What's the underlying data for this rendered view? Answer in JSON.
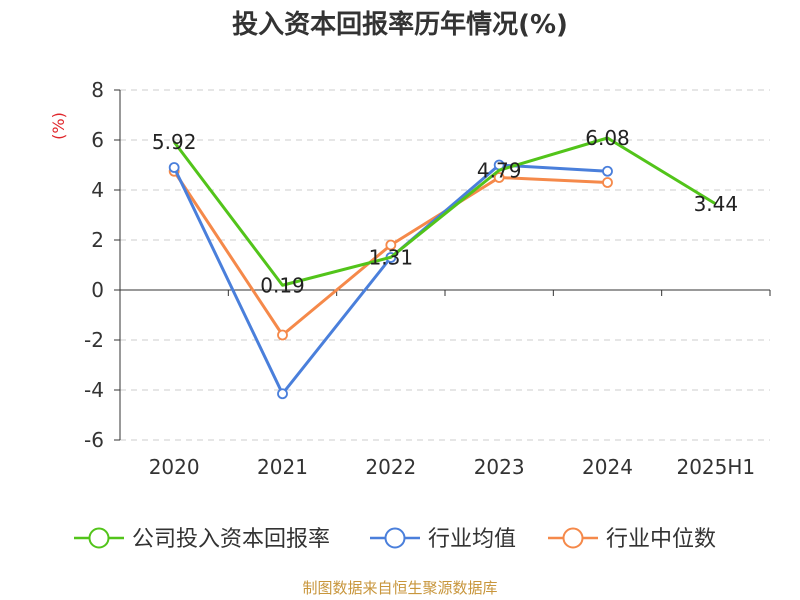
{
  "title": "投入资本回报率历年情况(%)",
  "source": "制图数据来自恒生聚源数据库",
  "colors": {
    "company": "#52c41a",
    "industry_avg": "#4a7fdb",
    "industry_median": "#f5894a",
    "ylabel": "#e0262b",
    "axis": "#333333",
    "grid": "#cccccc"
  },
  "chart_data": {
    "type": "line",
    "ylabel": "(%)",
    "ylim": [
      -6,
      8
    ],
    "yticks": [
      "8",
      "6",
      "4",
      "2",
      "0",
      "-2",
      "-4",
      "-6"
    ],
    "categories": [
      "2020",
      "2021",
      "2022",
      "2023",
      "2024",
      "2025H1"
    ],
    "grid": true,
    "legend_position": "bottom",
    "series": [
      {
        "name": "公司投入资本回报率",
        "values": [
          5.92,
          0.19,
          1.31,
          4.79,
          6.08,
          3.44
        ],
        "labels": [
          "5.92",
          "0.19",
          "1.31",
          "4.79",
          "6.08",
          "3.44"
        ]
      },
      {
        "name": "行业均值",
        "values": [
          4.9,
          -4.15,
          1.3,
          5.0,
          4.75,
          null
        ]
      },
      {
        "name": "行业中位数",
        "values": [
          4.75,
          -1.8,
          1.8,
          4.5,
          4.3,
          null
        ]
      }
    ]
  }
}
